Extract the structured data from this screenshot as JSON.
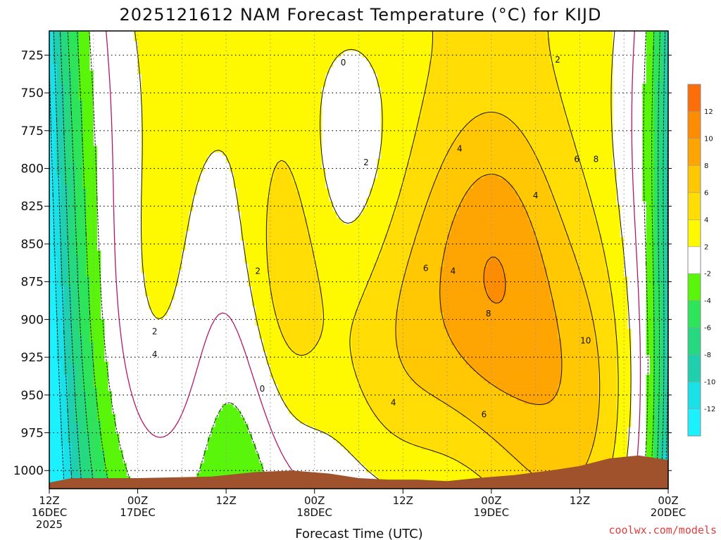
{
  "chart_data": {
    "type": "heatmap",
    "title": "2025121612 NAM Forecast Temperature (°C) for KIJD",
    "xlabel": "Forecast Time (UTC)",
    "ylabel": "",
    "x_ticks": [
      {
        "line1": "12Z",
        "line2": "16DEC",
        "line3": "2025"
      },
      {
        "line1": "00Z",
        "line2": "17DEC",
        "line3": ""
      },
      {
        "line1": "12Z",
        "line2": "",
        "line3": ""
      },
      {
        "line1": "00Z",
        "line2": "18DEC",
        "line3": ""
      },
      {
        "line1": "12Z",
        "line2": "",
        "line3": ""
      },
      {
        "line1": "00Z",
        "line2": "19DEC",
        "line3": ""
      },
      {
        "line1": "12Z",
        "line2": "",
        "line3": ""
      },
      {
        "line1": "00Z",
        "line2": "20DEC",
        "line3": ""
      }
    ],
    "xlim_hours": [
      0,
      84
    ],
    "y_ticks": [
      "725",
      "750",
      "775",
      "800",
      "825",
      "850",
      "875",
      "900",
      "925",
      "950",
      "975",
      "1000"
    ],
    "ylim_hPa": [
      1012,
      709
    ],
    "grid": true,
    "contour_labels": [
      {
        "text": "0",
        "hour": 39.9,
        "p": 730
      },
      {
        "text": "2",
        "hour": 43.0,
        "p": 796
      },
      {
        "text": "2",
        "hour": 69.0,
        "p": 728
      },
      {
        "text": "2",
        "hour": 28.3,
        "p": 868
      },
      {
        "text": "2",
        "hour": 14.3,
        "p": 908
      },
      {
        "text": "4",
        "hour": 14.3,
        "p": 923
      },
      {
        "text": "0",
        "hour": 28.9,
        "p": 946
      },
      {
        "text": "4",
        "hour": 55.7,
        "p": 787
      },
      {
        "text": "4",
        "hour": 66.0,
        "p": 818
      },
      {
        "text": "4",
        "hour": 54.8,
        "p": 868
      },
      {
        "text": "6",
        "hour": 51.1,
        "p": 866
      },
      {
        "text": "6",
        "hour": 71.6,
        "p": 794
      },
      {
        "text": "8",
        "hour": 74.2,
        "p": 794
      },
      {
        "text": "8",
        "hour": 59.6,
        "p": 896
      },
      {
        "text": "10",
        "hour": 72.8,
        "p": 914
      },
      {
        "text": "4",
        "hour": 46.7,
        "p": 955
      },
      {
        "text": "6",
        "hour": 59.0,
        "p": 963
      }
    ],
    "colorbar": {
      "ticks": [
        "12",
        "10",
        "8",
        "6",
        "4",
        "2",
        "-2",
        "-4",
        "-6",
        "-8",
        "-10",
        "-12"
      ],
      "colors": [
        "#fb6e08",
        "#fd8c03",
        "#fea503",
        "#ffc802",
        "#ffdd05",
        "#fef901",
        "#ffffff",
        "#59f50b",
        "#2de45b",
        "#26d880",
        "#20cfae",
        "#1ae0e8",
        "#1bf1ff"
      ]
    },
    "fill_colors": {
      "lt_m12": "#1bf1ff",
      "m12_m10": "#1ae0e8",
      "m10_m8": "#20cfae",
      "m8_m6": "#26d880",
      "m6_m4": "#2de45b",
      "m4_m2": "#59f50b",
      "m2_2": "#ffffff",
      "2_4": "#fef901",
      "4_6": "#ffdd05",
      "6_8": "#ffc802",
      "8_10": "#fea503",
      "10_12": "#fd8c03",
      "gt_12": "#fb6e08",
      "terrain": "#a0522d",
      "zero_line": "#b0186e"
    }
  },
  "credit": "coolwx.com/models"
}
